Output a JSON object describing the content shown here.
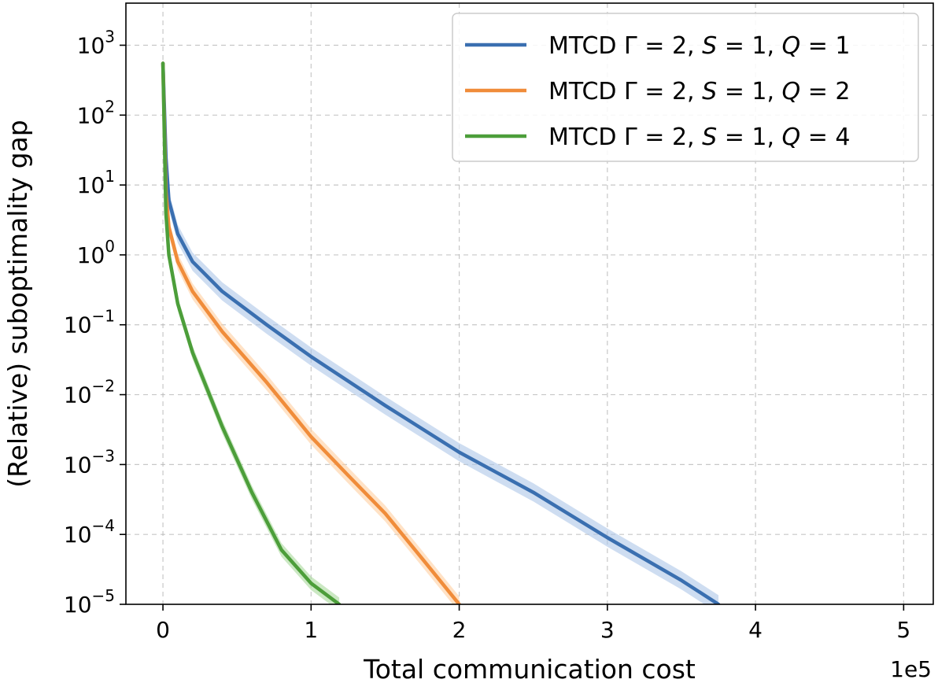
{
  "chart_data": {
    "type": "line",
    "title": "",
    "xlabel": "Total communication cost",
    "ylabel": "(Relative) suboptimality gap",
    "x_offset_label": "1e5",
    "xscale": "linear",
    "yscale": "log",
    "xlim": [
      -0.25,
      5.2
    ],
    "ylim": [
      1e-05,
      4000
    ],
    "grid": true,
    "legend_position": "top-right",
    "x_ticks": [
      {
        "value": 0,
        "label": "0"
      },
      {
        "value": 1,
        "label": "1"
      },
      {
        "value": 2,
        "label": "2"
      },
      {
        "value": 3,
        "label": "3"
      },
      {
        "value": 4,
        "label": "4"
      },
      {
        "value": 5,
        "label": "5"
      }
    ],
    "y_ticks": [
      {
        "value": 1e-05,
        "base": "10",
        "exp": "−5"
      },
      {
        "value": 0.0001,
        "base": "10",
        "exp": "−4"
      },
      {
        "value": 0.001,
        "base": "10",
        "exp": "−3"
      },
      {
        "value": 0.01,
        "base": "10",
        "exp": "−2"
      },
      {
        "value": 0.1,
        "base": "10",
        "exp": "−1"
      },
      {
        "value": 1,
        "base": "10",
        "exp": "0"
      },
      {
        "value": 10,
        "base": "10",
        "exp": "1"
      },
      {
        "value": 100,
        "base": "10",
        "exp": "2"
      },
      {
        "value": 1000,
        "base": "10",
        "exp": "3"
      }
    ],
    "series": [
      {
        "name": "MTCD Γ = 2, S = 1, Q = 1",
        "legend_prefix": "MTCD Γ = 2, ",
        "legend_S": "S",
        "legend_mid": " = 1, ",
        "legend_Q": "Q",
        "legend_end": " = 1",
        "color": "#3a6fb0",
        "band_color": "#aec7e8",
        "band_factor": 1.35,
        "points": [
          [
            0,
            550
          ],
          [
            0.02,
            25
          ],
          [
            0.04,
            6
          ],
          [
            0.1,
            2
          ],
          [
            0.2,
            0.8
          ],
          [
            0.4,
            0.3
          ],
          [
            0.7,
            0.1
          ],
          [
            1.0,
            0.035
          ],
          [
            1.5,
            0.007
          ],
          [
            2.0,
            0.0015
          ],
          [
            2.5,
            0.0004
          ],
          [
            3.0,
            9e-05
          ],
          [
            3.5,
            2.2e-05
          ],
          [
            3.75,
            1e-05
          ]
        ]
      },
      {
        "name": "MTCD Γ = 2, S = 1, Q = 2",
        "legend_prefix": "MTCD Γ = 2, ",
        "legend_S": "S",
        "legend_mid": " = 1, ",
        "legend_Q": "Q",
        "legend_end": " = 2",
        "color": "#f08c3a",
        "band_color": "#ffcfa0",
        "band_factor": 1.3,
        "points": [
          [
            0,
            550
          ],
          [
            0.02,
            8
          ],
          [
            0.04,
            2.5
          ],
          [
            0.1,
            0.8
          ],
          [
            0.2,
            0.3
          ],
          [
            0.4,
            0.08
          ],
          [
            0.7,
            0.015
          ],
          [
            1.0,
            0.0025
          ],
          [
            1.25,
            0.0007
          ],
          [
            1.5,
            0.0002
          ],
          [
            1.75,
            4.5e-05
          ],
          [
            2.0,
            1e-05
          ]
        ]
      },
      {
        "name": "MTCD Γ = 2, S = 1, Q = 4",
        "legend_prefix": "MTCD Γ = 2, ",
        "legend_S": "S",
        "legend_mid": " = 1, ",
        "legend_Q": "Q",
        "legend_end": " = 4",
        "color": "#4c9e3a",
        "band_color": "#a9d99b",
        "band_factor": 1.25,
        "points": [
          [
            0,
            550
          ],
          [
            0.02,
            4
          ],
          [
            0.04,
            1
          ],
          [
            0.1,
            0.2
          ],
          [
            0.2,
            0.04
          ],
          [
            0.4,
            0.0035
          ],
          [
            0.6,
            0.0004
          ],
          [
            0.8,
            6e-05
          ],
          [
            1.0,
            2e-05
          ],
          [
            1.19,
            1e-05
          ]
        ]
      }
    ]
  }
}
